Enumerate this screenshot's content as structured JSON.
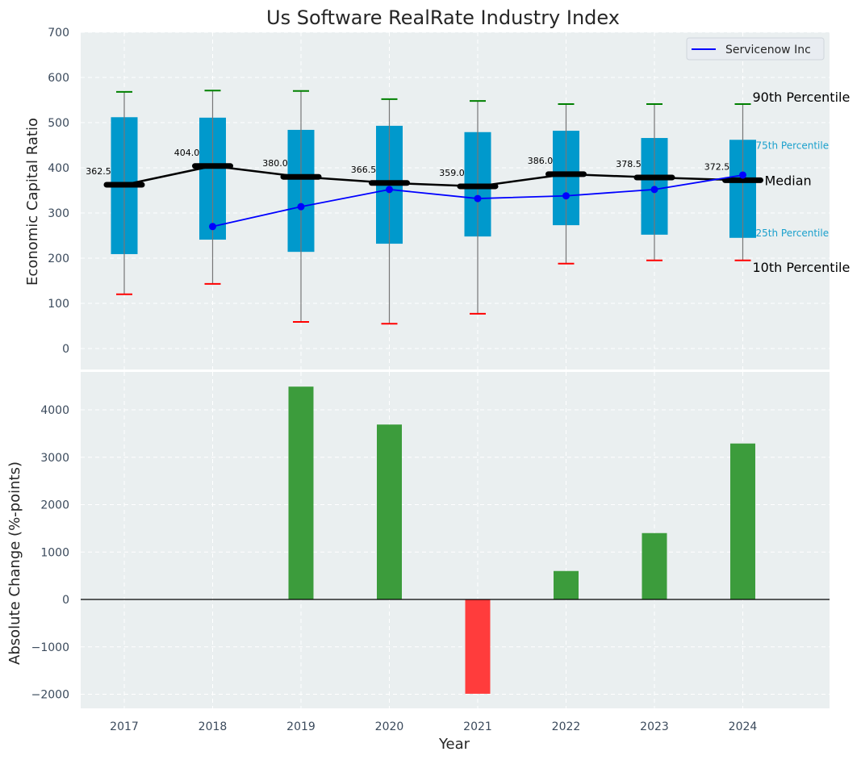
{
  "chart_data": [
    {
      "type": "box",
      "title": "Us Software RealRate Industry Index",
      "xlabel": "",
      "ylabel": "Economic Capital Ratio",
      "ylim": [
        -50,
        700
      ],
      "yticks": [
        0,
        100,
        200,
        300,
        400,
        500,
        600,
        700
      ],
      "categories": [
        "2017",
        "2018",
        "2019",
        "2020",
        "2021",
        "2022",
        "2023",
        "2024"
      ],
      "grid": true,
      "series": [
        {
          "name": "p90",
          "values": [
            568,
            571,
            570,
            552,
            548,
            541,
            541,
            541
          ],
          "color": "#008000"
        },
        {
          "name": "p75",
          "values": [
            512,
            511,
            484,
            493,
            479,
            482,
            466,
            462
          ],
          "color": "#0099cc"
        },
        {
          "name": "median",
          "values": [
            362.5,
            404.0,
            380.0,
            366.5,
            359.0,
            386.0,
            378.5,
            372.5
          ],
          "color": "#000000"
        },
        {
          "name": "p25",
          "values": [
            209,
            241,
            214,
            232,
            248,
            273,
            252,
            245
          ],
          "color": "#0099cc"
        },
        {
          "name": "p10",
          "values": [
            120,
            143,
            59,
            55,
            77,
            188,
            195,
            195
          ],
          "color": "#ff0000"
        },
        {
          "name": "Servicenow Inc",
          "values": [
            null,
            270,
            314,
            352,
            332,
            338,
            352,
            384
          ],
          "color": "#0000ff"
        }
      ],
      "median_labels": [
        "362.5",
        "404.0",
        "380.0",
        "366.5",
        "359.0",
        "386.0",
        "378.5",
        "372.5"
      ],
      "annotations": {
        "p90": "90th Percentile",
        "p75": "75th Percentile",
        "median": "Median",
        "p25": "25th Percentile",
        "p10": "10th Percentile"
      },
      "legend": {
        "entries": [
          "Servicenow Inc"
        ],
        "placement": "top-right"
      }
    },
    {
      "type": "bar",
      "xlabel": "Year",
      "ylabel": "Absolute Change (%-points)",
      "ylim": [
        -2300,
        4800
      ],
      "yticks": [
        -2000,
        -1000,
        0,
        1000,
        2000,
        3000,
        4000
      ],
      "ytick_labels": [
        "−2000",
        "−1000",
        "0",
        "1000",
        "2000",
        "3000",
        "4000"
      ],
      "categories": [
        "2017",
        "2018",
        "2019",
        "2020",
        "2021",
        "2022",
        "2023",
        "2024"
      ],
      "values": [
        0,
        0,
        4490,
        3690,
        -1990,
        600,
        1400,
        3290
      ],
      "positive_color": "#3c9c3c",
      "negative_color": "#ff3c3c",
      "grid": true
    }
  ]
}
